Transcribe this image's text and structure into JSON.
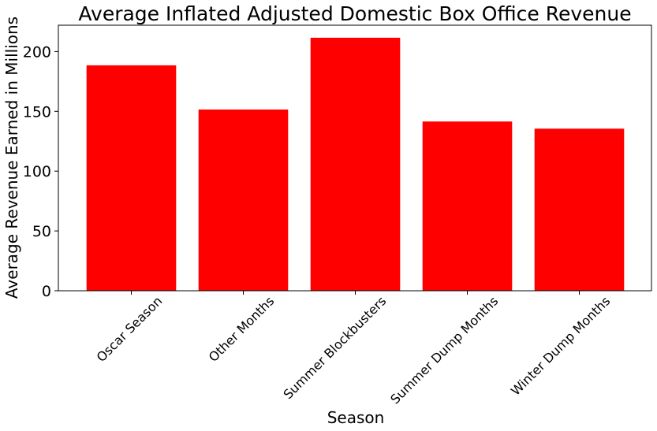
{
  "chart_data": {
    "type": "bar",
    "title": "Average Inflated Adjusted Domestic Box Office Revenue",
    "xlabel": "Season",
    "ylabel": "Average Revenue Earned in Millions",
    "categories": [
      "Oscar Season",
      "Other Months",
      "Summer Blockbusters",
      "Summer Dump Months",
      "Winter Dump Months"
    ],
    "values": [
      188.5,
      151.5,
      211.5,
      141.5,
      135.5
    ],
    "ylim": [
      0,
      222
    ],
    "yticks": [
      0,
      50,
      100,
      150,
      200
    ],
    "bar_color": "#ff0000",
    "grid": false,
    "legend": "none"
  }
}
